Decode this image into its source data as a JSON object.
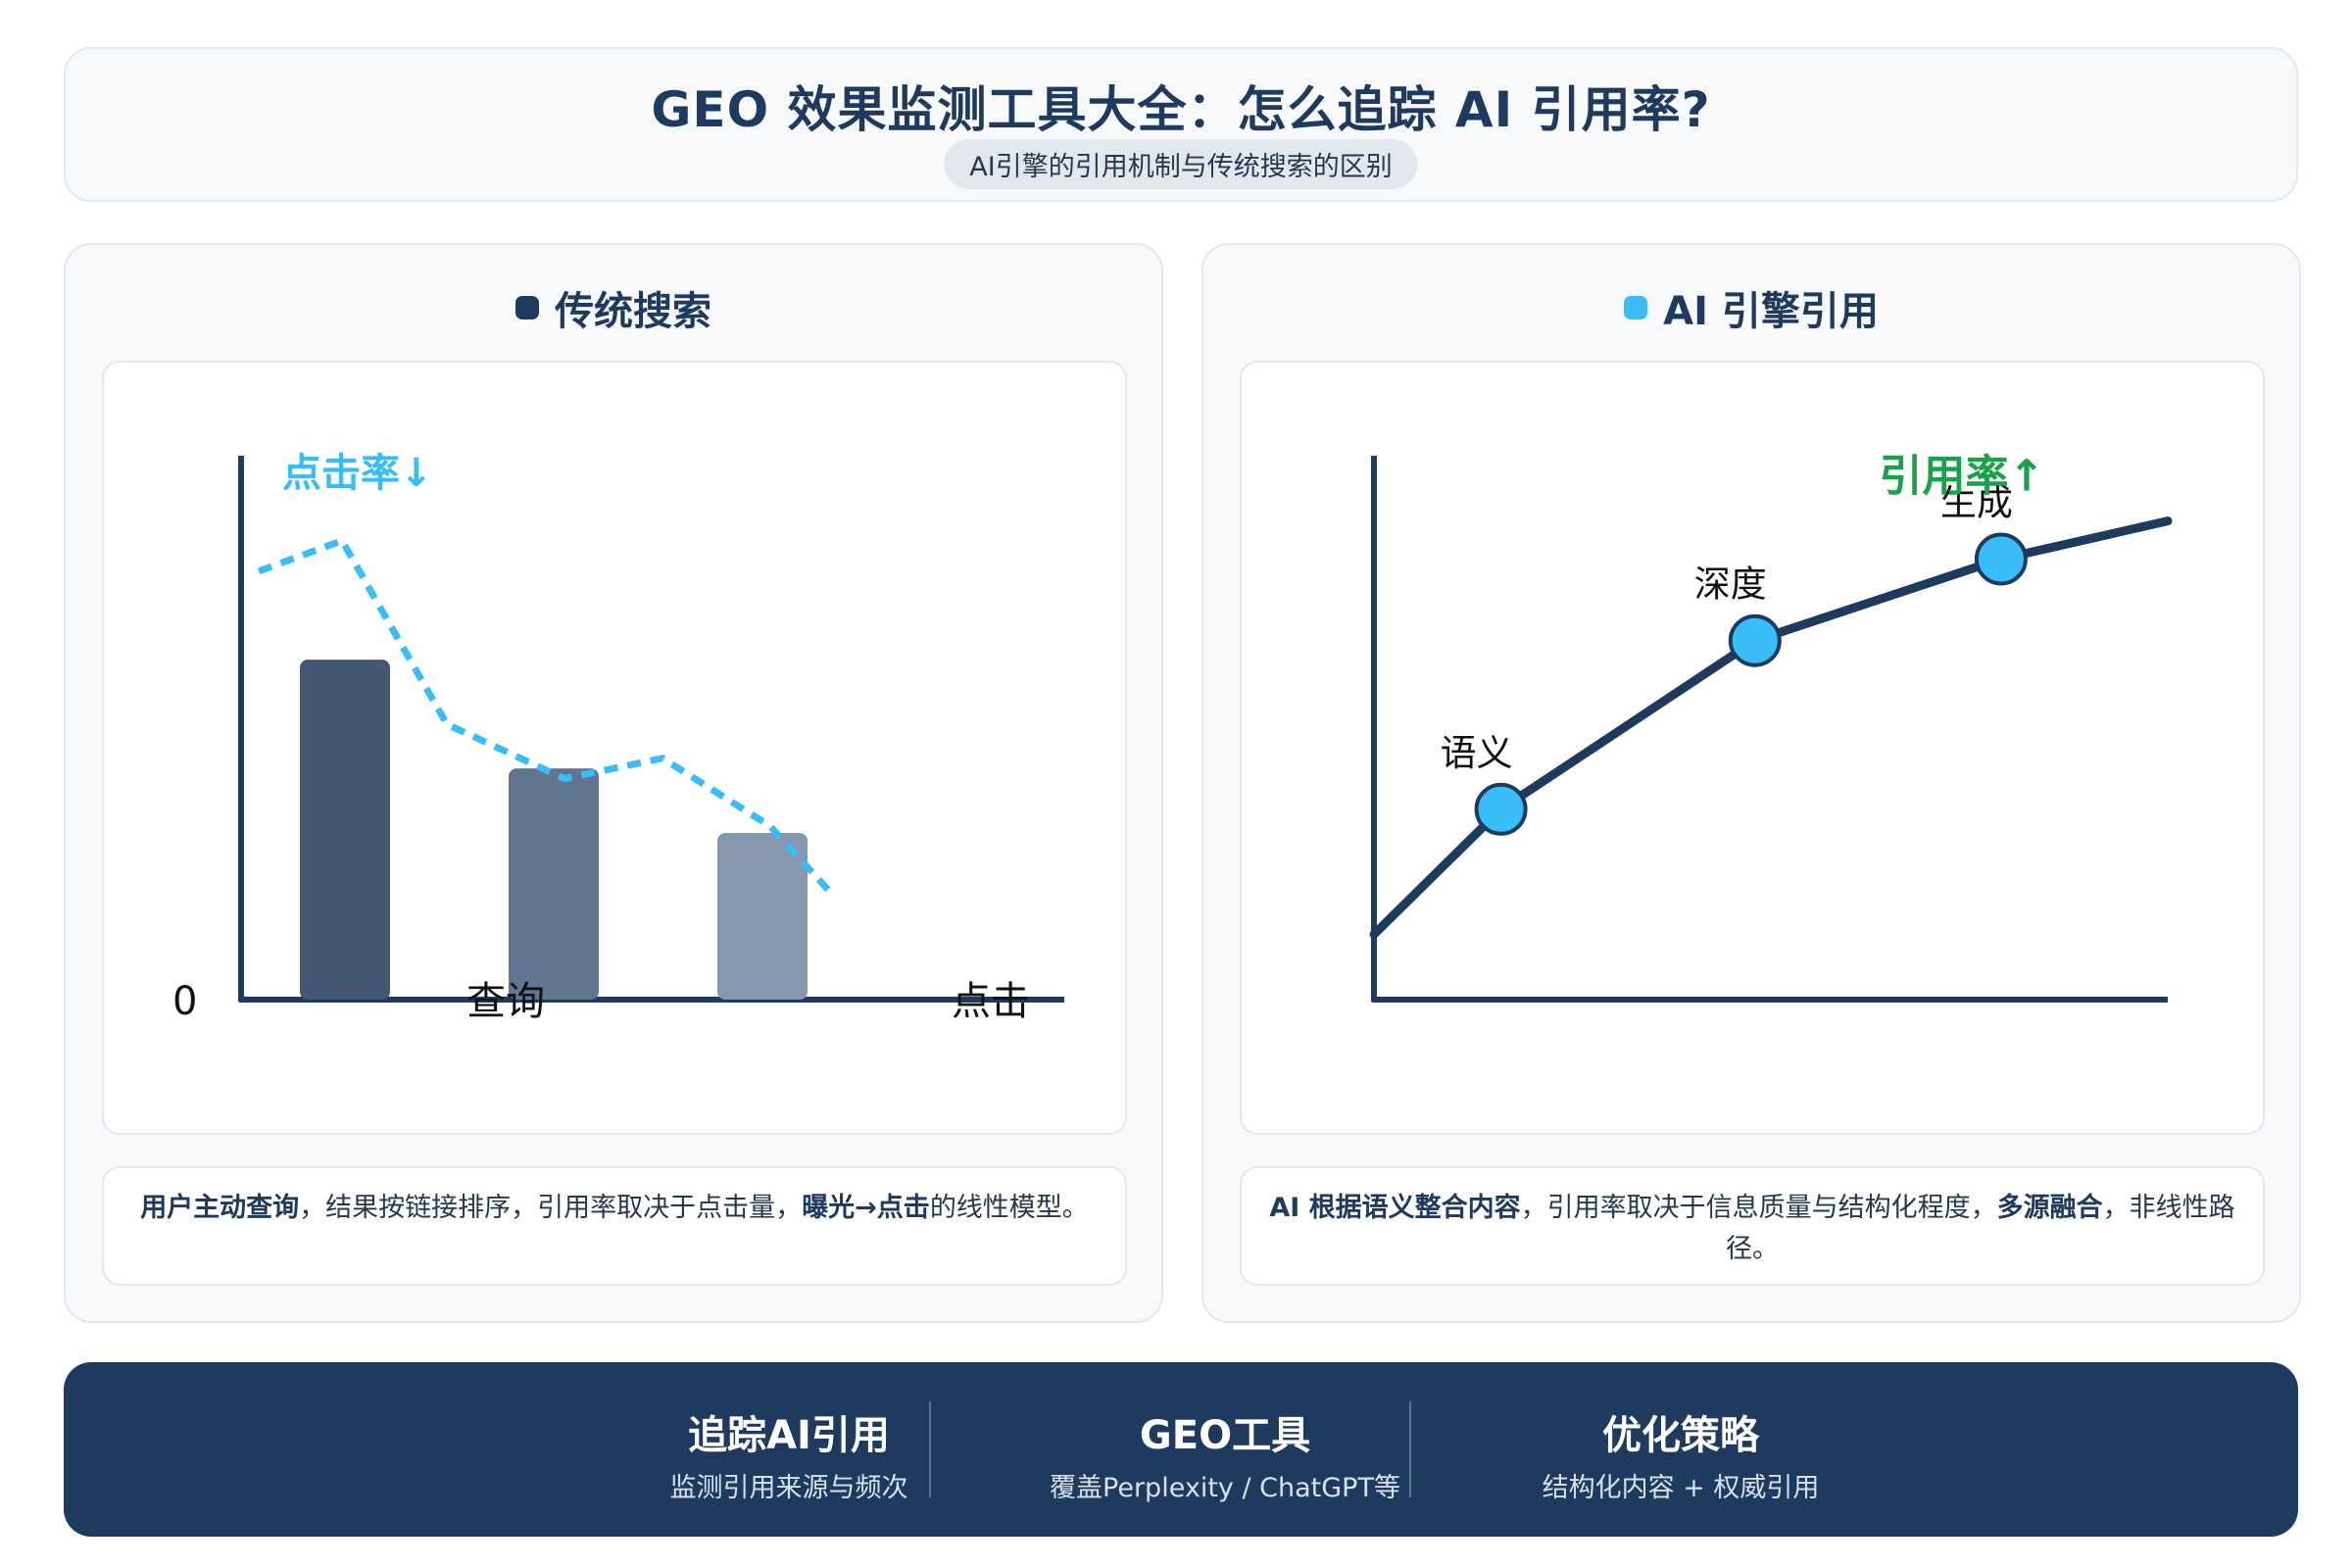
{
  "header": {
    "title": "GEO 效果监测工具大全：怎么追踪 AI 引用率?",
    "subtitle": "AI引擎的引用机制与传统搜索的区别"
  },
  "left_panel": {
    "title": "传统搜索",
    "dot_color": "#1e3a5f",
    "desc_bold1": "用户主动查询",
    "desc_text1": "，结果按链接排序，引用率取决于点击量，",
    "desc_bold2": "曝光→点击",
    "desc_text2": "的线性模型。"
  },
  "right_panel": {
    "title": "AI 引擎引用",
    "dot_color": "#38bdf8",
    "desc_bold1": "AI 根据语义整合内容",
    "desc_text1": "，引用率取决于信息质量与结构化程度，",
    "desc_bold2": "多源融合",
    "desc_text2": "，非线性路径。"
  },
  "chart_data": [
    {
      "type": "bar",
      "categories": [
        "",
        "",
        ""
      ],
      "values": [
        100,
        68,
        49
      ],
      "bar_colors": [
        "#445873",
        "#62758f",
        "#8797ad"
      ],
      "overlay_line": {
        "label": "点击率↓",
        "values": [
          126,
          93,
          71,
          32
        ],
        "color": "#38bdf8",
        "style": "dashed"
      },
      "origin_label": "0",
      "xlabel": "查询",
      "x_end_label": "点击",
      "ylim": [
        0,
        160
      ]
    },
    {
      "type": "line",
      "points": [
        {
          "x": 0,
          "y": 12,
          "label": ""
        },
        {
          "x": 16,
          "y": 35,
          "label": "语义"
        },
        {
          "x": 48,
          "y": 66,
          "label": "深度"
        },
        {
          "x": 79,
          "y": 81,
          "label": "生成"
        },
        {
          "x": 100,
          "y": 88,
          "label": ""
        }
      ],
      "annotation": "引用率↑",
      "annotation_color": "#16a34a",
      "line_color": "#1e3a5f",
      "point_color": "#38bdf8",
      "xlim": [
        0,
        100
      ],
      "ylim": [
        0,
        100
      ]
    }
  ],
  "footer": {
    "items": [
      {
        "title": "追踪AI引用",
        "subtitle": "监测引用来源与频次"
      },
      {
        "title": "GEO工具",
        "subtitle": "覆盖Perplexity / ChatGPT等"
      },
      {
        "title": "优化策略",
        "subtitle": "结构化内容 + 权威引用"
      }
    ]
  }
}
